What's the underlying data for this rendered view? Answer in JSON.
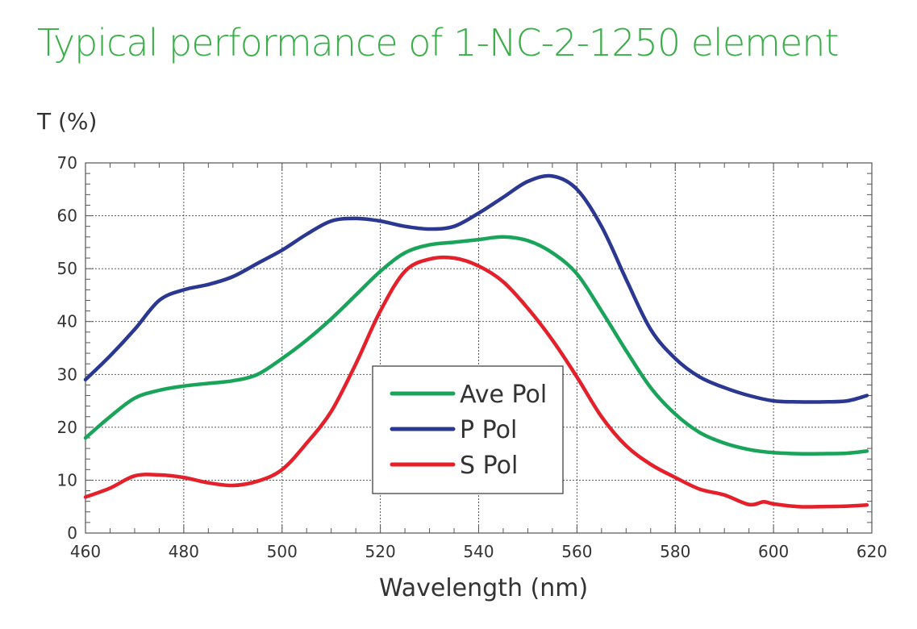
{
  "page": {
    "title": "Typical performance of 1-NC-2-1250 element"
  },
  "chart_data": {
    "type": "line",
    "title": "Typical performance of 1-NC-2-1250 element",
    "xlabel": "Wavelength (nm)",
    "ylabel": "T (%)",
    "xlim": [
      460,
      620
    ],
    "ylim": [
      0,
      70
    ],
    "xticks": [
      "460",
      "480",
      "500",
      "520",
      "540",
      "560",
      "580",
      "600",
      "620"
    ],
    "yticks": [
      "0",
      "10",
      "20",
      "30",
      "40",
      "50",
      "60",
      "70"
    ],
    "grid": "dotted",
    "legend": "center",
    "series": [
      {
        "name": "Ave Pol",
        "color": "#1aa45a",
        "x": [
          460,
          465,
          470,
          475,
          480,
          485,
          490,
          495,
          500,
          505,
          510,
          515,
          520,
          525,
          530,
          535,
          540,
          545,
          550,
          555,
          560,
          565,
          570,
          575,
          580,
          585,
          590,
          595,
          600,
          605,
          610,
          615,
          619
        ],
        "y": [
          18,
          22,
          25.5,
          27,
          27.8,
          28.3,
          28.8,
          30,
          33,
          36.5,
          40.5,
          45,
          49.5,
          53,
          54.5,
          55,
          55.5,
          56,
          55.3,
          53,
          49,
          42,
          34.5,
          27.5,
          22.5,
          19,
          17,
          15.8,
          15.2,
          15,
          15,
          15.1,
          15.5
        ]
      },
      {
        "name": "P Pol",
        "color": "#2b3892",
        "x": [
          460,
          465,
          470,
          475,
          480,
          485,
          490,
          495,
          500,
          505,
          510,
          515,
          520,
          525,
          530,
          535,
          540,
          545,
          550,
          555,
          560,
          565,
          570,
          575,
          580,
          585,
          590,
          595,
          600,
          605,
          610,
          615,
          619
        ],
        "y": [
          29,
          33.5,
          38.5,
          44,
          46,
          47,
          48.5,
          51,
          53.5,
          56.5,
          59,
          59.5,
          59,
          58,
          57.5,
          58,
          60.5,
          63.5,
          66.5,
          67.5,
          65,
          58,
          48,
          38.5,
          33,
          29.5,
          27.5,
          26,
          25,
          24.8,
          24.8,
          25,
          26
        ]
      },
      {
        "name": "S Pol",
        "color": "#e4202a",
        "x": [
          460,
          465,
          470,
          475,
          480,
          485,
          490,
          495,
          500,
          505,
          510,
          515,
          520,
          525,
          530,
          535,
          540,
          545,
          550,
          555,
          560,
          565,
          570,
          575,
          580,
          585,
          590,
          595,
          598,
          600,
          605,
          610,
          615,
          619
        ],
        "y": [
          6.8,
          8.5,
          10.8,
          11,
          10.5,
          9.5,
          9,
          9.8,
          12,
          17,
          23,
          32,
          42,
          49.5,
          51.8,
          52,
          50.5,
          47.5,
          42.5,
          36.5,
          29.5,
          22,
          16.5,
          13,
          10.5,
          8.3,
          7.2,
          5.4,
          5.9,
          5.5,
          5,
          5,
          5.1,
          5.3
        ]
      }
    ]
  }
}
